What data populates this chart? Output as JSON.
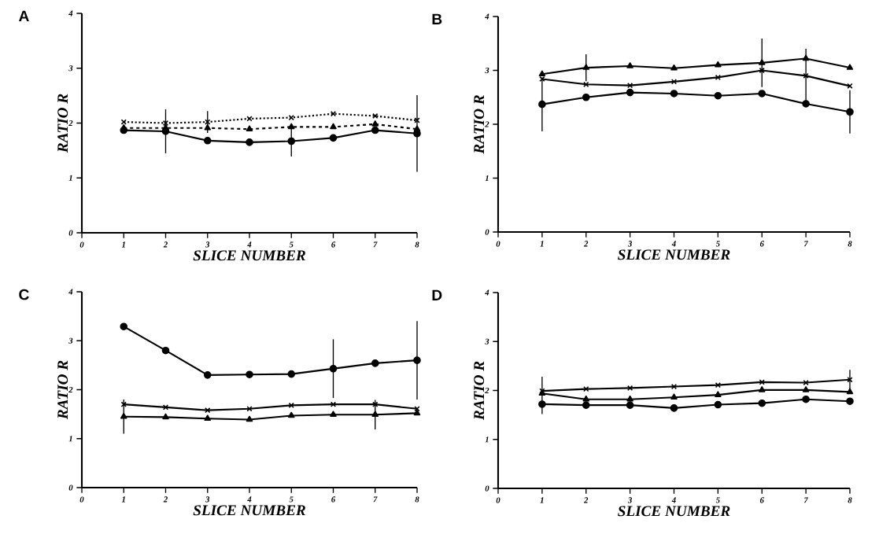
{
  "chart_data": [
    {
      "type": "line",
      "title": "A",
      "xlabel": "SLICE NUMBER",
      "ylabel": "RATIO R",
      "x": [
        1,
        2,
        3,
        4,
        5,
        6,
        7,
        8
      ],
      "xlim": [
        0,
        8
      ],
      "ylim": [
        0,
        4
      ],
      "xticks": [
        0,
        1,
        2,
        3,
        4,
        5,
        6,
        7,
        8
      ],
      "yticks": [
        0,
        1,
        2,
        3,
        4
      ],
      "series": [
        {
          "color": "#000000",
          "marker": "circle",
          "line_style": "solid",
          "values": [
            1.87,
            1.85,
            1.68,
            1.65,
            1.67,
            1.73,
            1.87,
            1.81
          ],
          "errors": [
            null,
            0.4,
            null,
            null,
            0.28,
            null,
            null,
            0.7
          ]
        },
        {
          "color": "#000000",
          "marker": "triangle",
          "line_style": "dashed",
          "values": [
            1.91,
            1.91,
            1.91,
            1.89,
            1.93,
            1.93,
            1.98,
            1.89
          ]
        },
        {
          "color": "#000000",
          "marker": "cross",
          "line_style": "dotted",
          "values": [
            2.02,
            2.0,
            2.02,
            2.08,
            2.1,
            2.17,
            2.13,
            2.05
          ],
          "errors": [
            null,
            null,
            0.2,
            null,
            null,
            null,
            null,
            null
          ]
        }
      ]
    },
    {
      "type": "line",
      "title": "B",
      "xlabel": "SLICE NUMBER",
      "ylabel": "RATIO R",
      "x": [
        1,
        2,
        3,
        4,
        5,
        6,
        7,
        8
      ],
      "xlim": [
        0,
        8
      ],
      "ylim": [
        0,
        4
      ],
      "xticks": [
        0,
        1,
        2,
        3,
        4,
        5,
        6,
        7,
        8
      ],
      "yticks": [
        0,
        1,
        2,
        3,
        4
      ],
      "series": [
        {
          "color": "#000000",
          "marker": "triangle",
          "line_style": "solid",
          "values": [
            2.93,
            3.05,
            3.08,
            3.04,
            3.1,
            3.14,
            3.22,
            3.05
          ],
          "errors": [
            null,
            0.25,
            null,
            null,
            null,
            0.45,
            null,
            null
          ]
        },
        {
          "color": "#000000",
          "marker": "cross",
          "line_style": "solid",
          "values": [
            2.84,
            2.74,
            2.72,
            2.79,
            2.87,
            3.0,
            2.9,
            2.71
          ],
          "errors": [
            null,
            null,
            null,
            null,
            null,
            null,
            0.5,
            null
          ]
        },
        {
          "color": "#000000",
          "marker": "circle",
          "line_style": "solid",
          "values": [
            2.37,
            2.5,
            2.59,
            2.57,
            2.53,
            2.57,
            2.38,
            2.23
          ],
          "errors": [
            0.5,
            null,
            null,
            null,
            null,
            null,
            null,
            0.4
          ]
        }
      ]
    },
    {
      "type": "line",
      "title": "C",
      "xlabel": "SLICE NUMBER",
      "ylabel": "RATIO R",
      "x": [
        1,
        2,
        3,
        4,
        5,
        6,
        7,
        8
      ],
      "xlim": [
        0,
        8
      ],
      "ylim": [
        0,
        4
      ],
      "xticks": [
        0,
        1,
        2,
        3,
        4,
        5,
        6,
        7,
        8
      ],
      "yticks": [
        0,
        1,
        2,
        3,
        4
      ],
      "series": [
        {
          "color": "#000000",
          "marker": "circle",
          "line_style": "solid",
          "values": [
            3.29,
            2.8,
            2.3,
            2.31,
            2.32,
            2.43,
            2.54,
            2.6
          ],
          "errors": [
            null,
            null,
            null,
            null,
            null,
            0.6,
            null,
            0.8
          ]
        },
        {
          "color": "#000000",
          "marker": "cross",
          "line_style": "solid",
          "values": [
            1.7,
            1.64,
            1.58,
            1.61,
            1.68,
            1.7,
            1.7,
            1.61
          ]
        },
        {
          "color": "#000000",
          "marker": "triangle",
          "line_style": "solid",
          "values": [
            1.45,
            1.44,
            1.41,
            1.39,
            1.47,
            1.49,
            1.49,
            1.52
          ],
          "errors": [
            0.35,
            null,
            null,
            null,
            null,
            null,
            0.3,
            null
          ]
        }
      ]
    },
    {
      "type": "line",
      "title": "D",
      "xlabel": "SLICE NUMBER",
      "ylabel": "RATIO R",
      "x": [
        1,
        2,
        3,
        4,
        5,
        6,
        7,
        8
      ],
      "xlim": [
        0,
        8
      ],
      "ylim": [
        0,
        4
      ],
      "xticks": [
        0,
        1,
        2,
        3,
        4,
        5,
        6,
        7,
        8
      ],
      "yticks": [
        0,
        1,
        2,
        3,
        4
      ],
      "series": [
        {
          "color": "#000000",
          "marker": "cross",
          "line_style": "solid",
          "values": [
            1.99,
            2.03,
            2.05,
            2.08,
            2.11,
            2.17,
            2.16,
            2.22
          ],
          "errors": [
            [
              1.52,
              2.28
            ],
            null,
            null,
            null,
            null,
            null,
            null,
            0.2
          ]
        },
        {
          "color": "#000000",
          "marker": "triangle",
          "line_style": "solid",
          "values": [
            1.94,
            1.82,
            1.82,
            1.86,
            1.91,
            2.01,
            2.01,
            1.97
          ]
        },
        {
          "color": "#000000",
          "marker": "circle",
          "line_style": "solid",
          "values": [
            1.72,
            1.7,
            1.7,
            1.64,
            1.71,
            1.74,
            1.82,
            1.78
          ]
        }
      ]
    }
  ]
}
